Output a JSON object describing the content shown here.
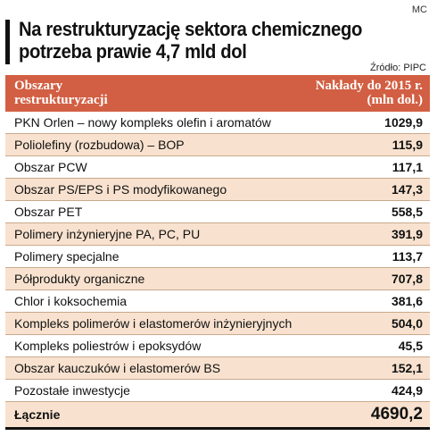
{
  "credit": "MC",
  "title": "Na restrukturyzację sektora chemicznego potrzeba prawie 4,7 mld dol",
  "title_lines": [
    "Na restrukturyzację sektora chemicznego",
    "potrzeba prawie 4,7 mld dol"
  ],
  "source": "Źródło: PIPC",
  "colors": {
    "header_bg": "#d25f43",
    "stripe": "#f8e2cf",
    "border": "#c9a98d"
  },
  "header": {
    "left": "Obszary\nrestrukturyzacji",
    "right": "Nakłady do 2015 r.\n(mln dol.)"
  },
  "total": {
    "label": "Łącznie",
    "value": "4690,2"
  },
  "chart_data": {
    "type": "table",
    "title": "Na restrukturyzację sektora chemicznego potrzeba prawie 4,7 mld dol",
    "columns": [
      "Obszary restrukturyzacji",
      "Nakłady do 2015 r. (mln dol.)"
    ],
    "rows": [
      {
        "label": "PKN Orlen – nowy kompleks olefin i aromatów",
        "value": "1029,9"
      },
      {
        "label": "Poliolefiny (rozbudowa) – BOP",
        "value": "115,9"
      },
      {
        "label": "Obszar PCW",
        "value": "117,1"
      },
      {
        "label": "Obszar PS/EPS i PS modyfikowanego",
        "value": "147,3"
      },
      {
        "label": "Obszar PET",
        "value": "558,5"
      },
      {
        "label": "Polimery inżynieryjne PA, PC, PU",
        "value": "391,9"
      },
      {
        "label": "Polimery specjalne",
        "value": "113,7"
      },
      {
        "label": "Półprodukty organiczne",
        "value": "707,8"
      },
      {
        "label": "Chlor i koksochemia",
        "value": "381,6"
      },
      {
        "label": "Kompleks polimerów i elastomerów inżynieryjnych",
        "value": "504,0"
      },
      {
        "label": "Kompleks poliestrów i epoksydów",
        "value": "45,5"
      },
      {
        "label": "Obszar kauczuków i elastomerów BS",
        "value": "152,1"
      },
      {
        "label": "Pozostałe inwestycje",
        "value": "424,9"
      }
    ],
    "total": {
      "label": "Łącznie",
      "value": "4690,2"
    }
  }
}
